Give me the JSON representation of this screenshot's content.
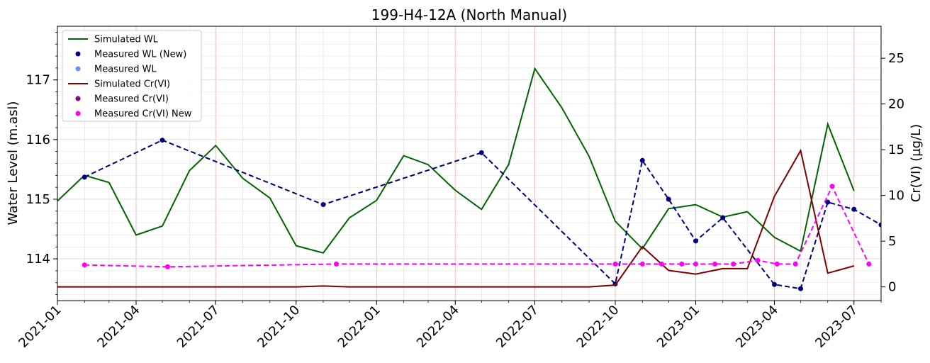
{
  "chart_data": {
    "type": "line",
    "title": "199-H4-12A (North Manual)",
    "ylabel_left": "Water Level (m.asl)",
    "ylabel_right": "Cr(VI) (µg/L)",
    "xlim": [
      "2021-01-01",
      "2023-08-01"
    ],
    "ylim_left": [
      113.3,
      117.9
    ],
    "ylim_right": [
      -1.5,
      28.5
    ],
    "x_ticks": [
      "2021-01",
      "2021-04",
      "2021-07",
      "2021-10",
      "2022-01",
      "2022-04",
      "2022-07",
      "2022-10",
      "2023-01",
      "2023-04",
      "2023-07"
    ],
    "y_ticks_left": [
      114,
      115,
      116,
      117
    ],
    "y_ticks_right": [
      0,
      5,
      10,
      15,
      20,
      25
    ],
    "grid": true,
    "legend_position": "top-left",
    "colors": {
      "simulated_wl": "#006400",
      "measured_wl_new": "#000080",
      "measured_wl": "#6495ED",
      "simulated_cr": "#800000",
      "measured_cr": "#800080",
      "measured_cr_new": "#FF00FF"
    },
    "series": [
      {
        "name": "Simulated WL",
        "axis": "left",
        "style": "solid",
        "x": [
          "2021-01-01",
          "2021-02-01",
          "2021-03-01",
          "2021-04-01",
          "2021-05-01",
          "2021-06-01",
          "2021-07-01",
          "2021-08-01",
          "2021-09-01",
          "2021-10-01",
          "2021-11-01",
          "2021-12-01",
          "2022-01-01",
          "2022-02-01",
          "2022-03-01",
          "2022-04-01",
          "2022-05-01",
          "2022-06-01",
          "2022-07-01",
          "2022-08-01",
          "2022-09-01",
          "2022-10-01",
          "2022-11-01",
          "2022-12-01",
          "2023-01-01",
          "2023-02-01",
          "2023-03-01",
          "2023-04-01",
          "2023-05-01",
          "2023-06-01",
          "2023-07-01"
        ],
        "y": [
          114.97,
          115.4,
          115.28,
          114.4,
          114.55,
          115.48,
          115.9,
          115.35,
          115.02,
          114.22,
          114.1,
          114.69,
          114.98,
          115.73,
          115.58,
          115.15,
          114.83,
          115.58,
          117.19,
          116.53,
          115.72,
          114.63,
          114.17,
          114.84,
          114.91,
          114.7,
          114.79,
          114.36,
          114.13,
          116.26,
          115.14
        ]
      },
      {
        "name": "Measured WL (New)",
        "axis": "left",
        "style": "dashed-markers",
        "x": [
          "2021-02-01",
          "2021-05-01",
          "2021-11-01",
          "2022-05-01",
          "2022-10-01",
          "2022-11-01",
          "2022-12-01",
          "2023-01-01",
          "2023-02-01",
          "2023-04-01",
          "2023-05-01",
          "2023-06-01",
          "2023-07-01",
          "2023-08-01"
        ],
        "y": [
          115.37,
          115.99,
          114.91,
          115.78,
          113.58,
          115.65,
          115.0,
          114.3,
          114.69,
          113.57,
          113.5,
          114.95,
          114.83,
          114.57
        ]
      },
      {
        "name": "Measured WL",
        "axis": "left",
        "style": "markers",
        "x": [],
        "y": []
      },
      {
        "name": "Simulated Cr(VI)",
        "axis": "right",
        "style": "solid",
        "x": [
          "2021-01-01",
          "2021-04-01",
          "2021-07-01",
          "2021-10-01",
          "2021-11-01",
          "2021-12-01",
          "2022-04-01",
          "2022-07-01",
          "2022-09-01",
          "2022-10-01",
          "2022-11-01",
          "2022-12-01",
          "2023-01-01",
          "2023-02-01",
          "2023-03-01",
          "2023-04-01",
          "2023-05-01",
          "2023-06-01",
          "2023-07-01"
        ],
        "y": [
          0,
          0,
          0,
          0,
          0.1,
          0,
          0,
          0,
          0,
          0.2,
          4.4,
          1.8,
          1.4,
          2.0,
          2.0,
          9.9,
          14.9,
          1.5,
          2.3
        ]
      },
      {
        "name": "Measured Cr(VI)",
        "axis": "right",
        "style": "markers",
        "x": [],
        "y": []
      },
      {
        "name": "Measured Cr(VI) New",
        "axis": "right",
        "style": "dashed-markers",
        "x": [
          "2021-02-01",
          "2021-05-07",
          "2021-11-16",
          "2022-10-01",
          "2022-11-01",
          "2022-11-23",
          "2022-12-16",
          "2023-01-01",
          "2023-01-23",
          "2023-02-13",
          "2023-03-13",
          "2023-04-04",
          "2023-04-25",
          "2023-06-06",
          "2023-07-18"
        ],
        "y": [
          2.4,
          2.2,
          2.5,
          2.5,
          2.5,
          2.5,
          2.5,
          2.5,
          2.5,
          2.5,
          2.9,
          2.5,
          2.5,
          11.0,
          2.5
        ]
      }
    ]
  }
}
